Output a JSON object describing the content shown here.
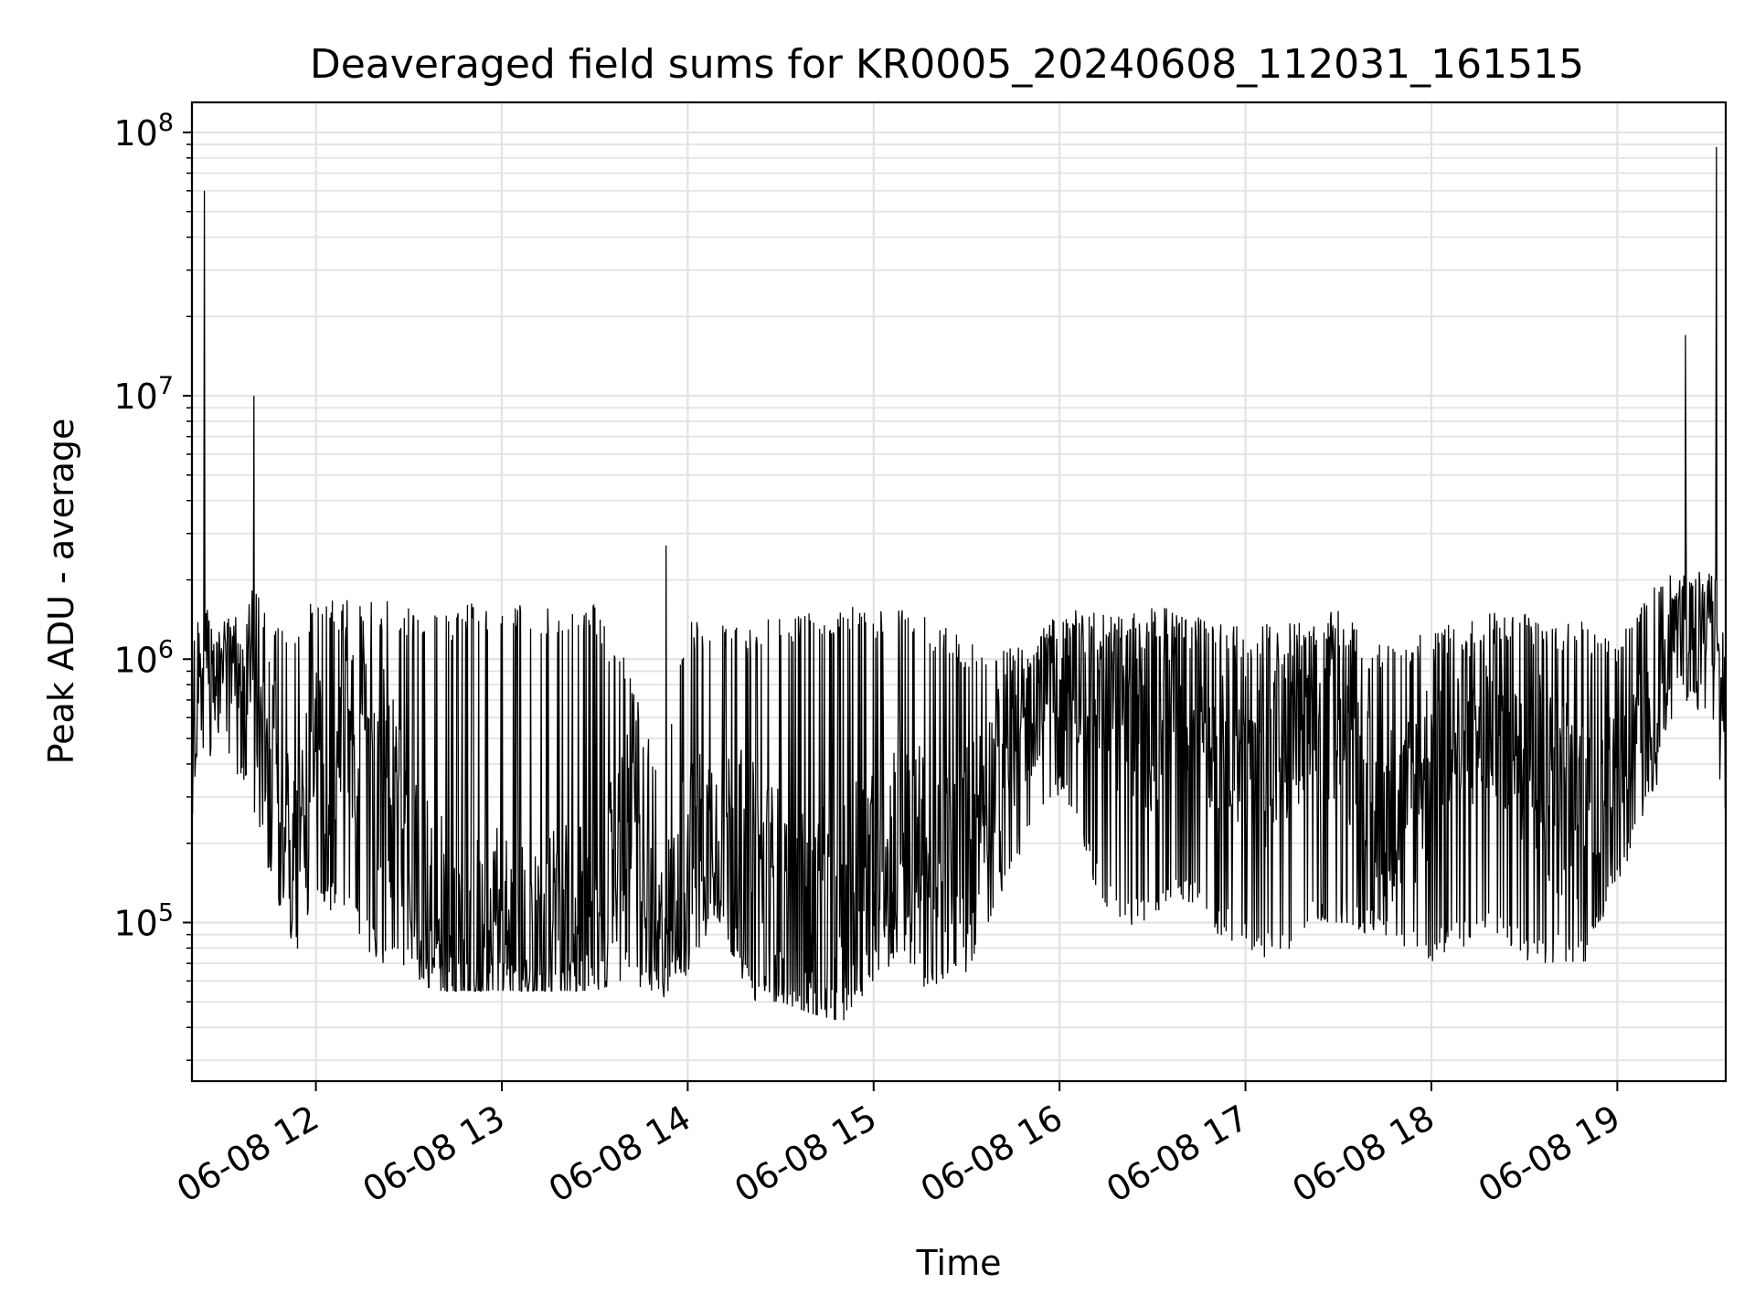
{
  "chart_data": {
    "type": "line",
    "title": "Deaveraged field sums for KR0005_20240608_112031_161515",
    "xlabel": "Time",
    "ylabel": "Peak ADU - average",
    "y_scale": "log",
    "ylim": [
      25000,
      130000000
    ],
    "xlim": [
      "06-08 11:20",
      "06-08 19:35"
    ],
    "x_ticks": [
      "06-08 12",
      "06-08 13",
      "06-08 14",
      "06-08 15",
      "06-08 16",
      "06-08 17",
      "06-08 18",
      "06-08 19"
    ],
    "y_ticks": [
      {
        "base": "10",
        "exp": "5",
        "value": 100000
      },
      {
        "base": "10",
        "exp": "6",
        "value": 1000000
      },
      {
        "base": "10",
        "exp": "7",
        "value": 10000000
      },
      {
        "base": "10",
        "exp": "8",
        "value": 100000000
      }
    ],
    "grid": true,
    "line_color": "#000000",
    "series": [
      {
        "x": [
          "06-08 11:20",
          "06-08 11:25",
          "06-08 11:30",
          "06-08 11:35",
          "06-08 11:40",
          "06-08 11:45",
          "06-08 11:50",
          "06-08 11:55",
          "06-08 12:00",
          "06-08 12:10",
          "06-08 12:20",
          "06-08 12:30",
          "06-08 12:40",
          "06-08 12:50",
          "06-08 13:00",
          "06-08 13:10",
          "06-08 13:20",
          "06-08 13:30",
          "06-08 13:40",
          "06-08 13:50",
          "06-08 14:00",
          "06-08 14:10",
          "06-08 14:20",
          "06-08 14:30",
          "06-08 14:40",
          "06-08 14:50",
          "06-08 15:00",
          "06-08 15:10",
          "06-08 15:20",
          "06-08 15:30",
          "06-08 15:40",
          "06-08 15:50",
          "06-08 16:00",
          "06-08 16:10",
          "06-08 16:20",
          "06-08 16:30",
          "06-08 16:40",
          "06-08 16:50",
          "06-08 17:00",
          "06-08 17:10",
          "06-08 17:20",
          "06-08 17:30",
          "06-08 17:40",
          "06-08 17:50",
          "06-08 18:00",
          "06-08 18:10",
          "06-08 18:20",
          "06-08 18:30",
          "06-08 18:40",
          "06-08 18:50",
          "06-08 19:00",
          "06-08 19:10",
          "06-08 19:20",
          "06-08 19:30",
          "06-08 19:35"
        ],
        "values": [
          500000,
          900000,
          1100000,
          900000,
          700000,
          500000,
          300000,
          250000,
          400000,
          600000,
          400000,
          200000,
          100000,
          80000,
          90000,
          85000,
          90000,
          80000,
          250000,
          80000,
          180000,
          250000,
          160000,
          120000,
          90000,
          100000,
          200000,
          250000,
          130000,
          200000,
          400000,
          600000,
          900000,
          800000,
          700000,
          600000,
          700000,
          600000,
          500000,
          450000,
          600000,
          650000,
          300000,
          250000,
          400000,
          500000,
          700000,
          500000,
          300000,
          300000,
          400000,
          500000,
          1500000,
          1300000,
          700000
        ],
        "spikes": [
          {
            "x": "06-08 11:24",
            "y": 60000000
          },
          {
            "x": "06-08 11:40",
            "y": 10000000
          },
          {
            "x": "06-08 13:53",
            "y": 2700000
          },
          {
            "x": "06-08 19:22",
            "y": 17000000
          },
          {
            "x": "06-08 19:32",
            "y": 88000000
          }
        ],
        "band_low": [
          250000,
          400000,
          500000,
          350000,
          250000,
          150000,
          90000,
          70000,
          120000,
          100000,
          70000,
          60000,
          55000,
          55000,
          55000,
          55000,
          55000,
          55000,
          60000,
          50000,
          60000,
          100000,
          50000,
          50000,
          45000,
          42000,
          60000,
          70000,
          50000,
          60000,
          120000,
          200000,
          300000,
          150000,
          90000,
          100000,
          120000,
          90000,
          80000,
          70000,
          90000,
          100000,
          90000,
          80000,
          70000,
          80000,
          90000,
          70000,
          70000,
          70000,
          130000,
          250000,
          700000,
          600000,
          250000
        ],
        "band_high": [
          1500000,
          1600000,
          1400000,
          1500000,
          2000000,
          1400000,
          1300000,
          1600000,
          1700000,
          1700000,
          1700000,
          1600000,
          1500000,
          1650000,
          1650000,
          1650000,
          1600000,
          1600000,
          1000000,
          400000,
          1400000,
          1500000,
          1300000,
          1500000,
          1600000,
          1600000,
          1550000,
          1700000,
          1400000,
          1200000,
          1100000,
          1300000,
          1600000,
          1500000,
          1500000,
          1600000,
          1550000,
          1400000,
          1500000,
          1400000,
          1500000,
          1550000,
          1200000,
          1200000,
          1300000,
          1400000,
          1500000,
          1500000,
          1400000,
          1400000,
          1100000,
          2100000,
          2200000,
          2200000,
          1800000
        ]
      }
    ]
  }
}
